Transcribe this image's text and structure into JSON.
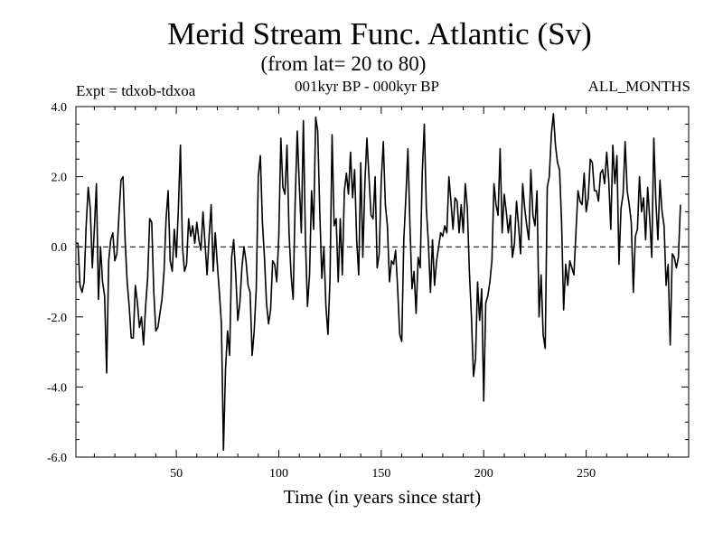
{
  "chart_data": {
    "type": "line",
    "title": "Merid Stream Func. Atlantic (Sv)",
    "subtitle": "(from lat= 20 to 80)",
    "experiment": "Expt = tdxob-tdxoa",
    "period": "001kyr BP - 000kyr BP",
    "months": "ALL_MONTHS",
    "xlabel": "Time (in years since start)",
    "ylabel": "",
    "xlim": [
      1,
      300
    ],
    "ylim": [
      -6.0,
      4.0
    ],
    "xticks": [
      50,
      100,
      150,
      200,
      250
    ],
    "xtick_labels": [
      "50",
      "100",
      "150",
      "200",
      "250"
    ],
    "yticks": [
      -6,
      -4,
      -2,
      0,
      2,
      4
    ],
    "ytick_labels": [
      "-6.0",
      "-4.0",
      "-2.0",
      "0.0",
      "2.0",
      "4.0"
    ],
    "zero_line": "dashed",
    "grid": false,
    "series": [
      {
        "values": [
          0.1,
          0.1,
          -1.1,
          -1.3,
          -1.0,
          0.6,
          1.7,
          1.1,
          -0.6,
          0.5,
          1.8,
          -1.5,
          0.0,
          -1.0,
          -1.4,
          -3.6,
          -0.4,
          0.2,
          0.4,
          -0.4,
          -0.2,
          0.9,
          1.9,
          2.0,
          0.2,
          -1.0,
          -1.7,
          -2.6,
          -2.6,
          -1.1,
          -1.6,
          -2.3,
          -2.0,
          -2.8,
          -1.7,
          -0.9,
          0.8,
          0.7,
          -1.3,
          -2.4,
          -2.3,
          -1.9,
          -1.5,
          -0.7,
          0.8,
          1.6,
          -0.4,
          -0.7,
          0.5,
          -0.3,
          1.1,
          2.9,
          0.0,
          -0.7,
          -0.5,
          0.8,
          0.3,
          0.6,
          0.1,
          0.7,
          0.2,
          -0.1,
          1.0,
          0.1,
          -0.8,
          0.3,
          1.2,
          -0.7,
          0.4,
          -0.5,
          -1.3,
          -2.2,
          -5.8,
          -3.5,
          -2.4,
          -3.1,
          -0.3,
          0.2,
          -0.8,
          -2.1,
          -1.6,
          -0.6,
          0.0,
          -0.4,
          -1.1,
          -1.3,
          -3.1,
          -2.4,
          -1.2,
          2.0,
          2.6,
          0.7,
          -0.3,
          -1.6,
          -2.2,
          -1.8,
          -0.4,
          -0.5,
          -1.0,
          0.3,
          3.1,
          1.7,
          1.5,
          2.9,
          0.4,
          -0.8,
          -1.5,
          1.3,
          3.3,
          1.8,
          0.4,
          3.6,
          0.2,
          -1.7,
          -0.8,
          1.6,
          0.5,
          3.7,
          3.3,
          1.0,
          -0.9,
          0.0,
          -1.7,
          -2.5,
          -0.9,
          3.2,
          0.6,
          0.8,
          -1.0,
          0.8,
          -0.8,
          1.6,
          2.1,
          1.5,
          2.7,
          1.4,
          2.2,
          0.2,
          -0.8,
          2.4,
          -0.3,
          1.8,
          3.1,
          2.0,
          0.9,
          0.8,
          2.0,
          -0.6,
          -0.2,
          1.9,
          3.0,
          1.2,
          0.6,
          -1.0,
          -0.4,
          -0.5,
          -0.1,
          -1.2,
          -2.5,
          -2.7,
          0.2,
          1.4,
          2.8,
          0.6,
          -1.2,
          -0.7,
          -1.9,
          -0.3,
          -0.6,
          2.1,
          3.5,
          1.1,
          0.1,
          -1.3,
          0.2,
          -1.1,
          -0.4,
          0.0,
          0.4,
          0.3,
          0.6,
          0.4,
          2.0,
          1.3,
          0.5,
          1.4,
          1.3,
          0.4,
          1.2,
          0.4,
          1.8,
          1.1,
          -0.7,
          -2.0,
          -3.7,
          -3.2,
          -1.0,
          -2.1,
          -1.2,
          -4.4,
          -1.6,
          -1.4,
          -1.0,
          -0.4,
          1.8,
          1.2,
          0.9,
          2.8,
          0.4,
          1.5,
          1.0,
          0.4,
          0.9,
          -0.3,
          0.1,
          1.3,
          0.6,
          -0.2,
          1.8,
          1.1,
          0.6,
          0.2,
          2.2,
          0.9,
          0.6,
          1.6,
          -2.0,
          -0.8,
          -2.5,
          -2.9,
          1.7,
          2.0,
          3.2,
          3.8,
          2.9,
          2.4,
          2.2,
          0.7,
          -1.8,
          -0.5,
          -1.1,
          -0.4,
          -0.6,
          -0.8,
          0.4,
          1.6,
          1.3,
          1.2,
          2.1,
          1.0,
          1.4,
          2.5,
          2.4,
          1.6,
          1.6,
          1.3,
          2.1,
          2.2,
          1.8,
          2.7,
          1.9,
          0.5,
          2.9,
          1.8,
          2.6,
          -0.5,
          1.1,
          1.5,
          3.0,
          1.6,
          1.2,
          0.7,
          -1.3,
          0.3,
          0.5,
          2.0,
          1.0,
          1.4,
          0.2,
          1.7,
          0.8,
          -0.3,
          3.1,
          1.3,
          0.2,
          1.9,
          1.0,
          0.6,
          -1.1,
          -0.5,
          -2.8,
          -0.2,
          -0.3,
          -0.6,
          -0.3,
          1.2
        ]
      }
    ]
  }
}
